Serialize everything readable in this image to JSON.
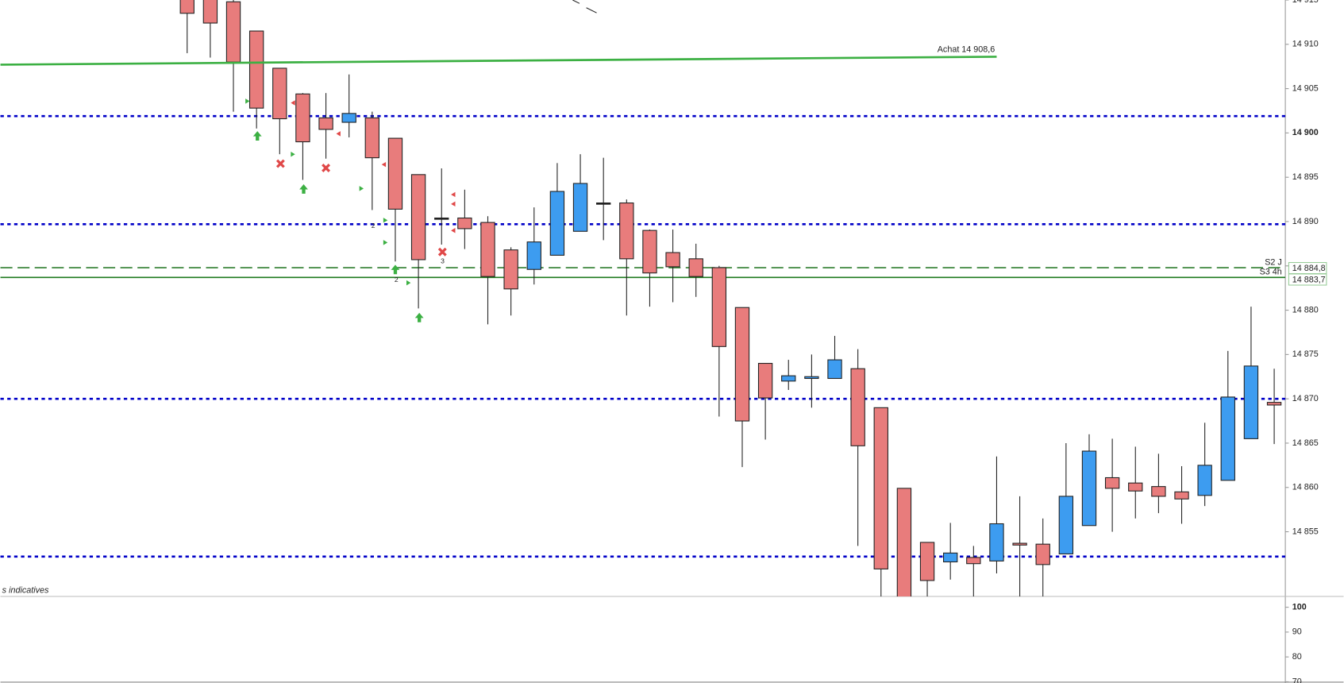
{
  "chart_data": {
    "type": "candlestick",
    "up_color": "#3d9cf0",
    "down_color": "#e87c7c",
    "ylim": [
      14847.7,
      14915.0
    ],
    "yticks": [
      {
        "value": 14915,
        "label": "14 915"
      },
      {
        "value": 14910,
        "label": "14 910"
      },
      {
        "value": 14905,
        "label": "14 905"
      },
      {
        "value": 14900,
        "label": "14 900"
      },
      {
        "value": 14895,
        "label": "14 895"
      },
      {
        "value": 14890,
        "label": "14 890"
      },
      {
        "value": 14885,
        "label": "14 885"
      },
      {
        "value": 14880,
        "label": "14 880"
      },
      {
        "value": 14875,
        "label": "14 875"
      },
      {
        "value": 14870,
        "label": "14 870"
      },
      {
        "value": 14865,
        "label": "14 865"
      },
      {
        "value": 14860,
        "label": "14 860"
      },
      {
        "value": 14855,
        "label": "14 855"
      }
    ],
    "open": [
      14915.5,
      14915.5,
      14914.8,
      14911.5,
      14907.3,
      14904.4,
      14901.7,
      14901.2,
      14901.7,
      14899.4,
      14895.3,
      14890.4,
      14890.4,
      14889.9,
      14886.8,
      14884.6,
      14886.2,
      14888.9,
      14892.1,
      14892.1,
      14889.0,
      14886.5,
      14885.8,
      14884.8,
      14880.3,
      14874.0,
      14872.0,
      14872.3,
      14872.3,
      14873.4,
      14869.0,
      14859.9,
      14853.8,
      14851.6,
      14852.1,
      14851.7,
      14853.7,
      14853.6,
      14852.5,
      14855.7,
      14861.1,
      14860.5,
      14860.1,
      14859.5,
      14859.1,
      14860.8,
      14865.5,
      14869.6
    ],
    "high": [
      14916.9,
      14916.9,
      14916.0,
      14911.5,
      14907.3,
      14904.5,
      14904.5,
      14906.6,
      14902.4,
      14899.4,
      14895.3,
      14896.0,
      14893.6,
      14890.6,
      14887.1,
      14891.6,
      14896.6,
      14897.6,
      14897.2,
      14892.5,
      14889.1,
      14889.1,
      14887.5,
      14885.0,
      14880.3,
      14874.0,
      14874.4,
      14875.0,
      14877.1,
      14875.6,
      14869.0,
      14859.9,
      14853.8,
      14856.0,
      14853.4,
      14863.5,
      14859.0,
      14856.5,
      14865.0,
      14866.0,
      14865.5,
      14864.6,
      14863.8,
      14862.4,
      14867.3,
      14875.4,
      14880.4,
      14873.4
    ],
    "low": [
      14909.0,
      14908.5,
      14902.4,
      14900.5,
      14897.6,
      14894.7,
      14897.1,
      14899.5,
      14891.3,
      14885.5,
      14880.2,
      14887.4,
      14886.9,
      14878.4,
      14879.4,
      14882.9,
      14886.2,
      14888.9,
      14887.9,
      14879.4,
      14880.4,
      14880.9,
      14881.5,
      14868.0,
      14862.3,
      14865.4,
      14871.0,
      14869.0,
      14872.3,
      14853.4,
      14847.5,
      14845.0,
      14847.5,
      14849.6,
      14847.5,
      14850.3,
      14847.5,
      14847.5,
      14852.5,
      14855.7,
      14855.0,
      14856.5,
      14857.1,
      14855.9,
      14857.9,
      14860.8,
      14865.5,
      14864.9
    ],
    "close": [
      14913.5,
      14912.4,
      14908.0,
      14902.8,
      14901.6,
      14899.0,
      14900.4,
      14902.2,
      14897.2,
      14891.4,
      14885.7,
      14890.4,
      14889.2,
      14883.8,
      14882.4,
      14887.7,
      14893.4,
      14894.3,
      14892.1,
      14885.8,
      14884.2,
      14884.9,
      14883.8,
      14875.9,
      14867.5,
      14870.1,
      14872.6,
      14872.5,
      14874.4,
      14864.7,
      14850.8,
      14846.3,
      14849.5,
      14852.6,
      14851.4,
      14855.9,
      14853.5,
      14851.3,
      14859.0,
      14864.1,
      14859.9,
      14859.6,
      14859.0,
      14858.7,
      14862.5,
      14870.2,
      14873.7,
      14869.3
    ],
    "levels": [
      {
        "value": 14901.9,
        "style": "dotted",
        "color": "#0000c8"
      },
      {
        "value": 14889.7,
        "style": "dotted",
        "color": "#0000c8"
      },
      {
        "value": 14870.0,
        "style": "dotted",
        "color": "#0000c8"
      },
      {
        "value": 14852.2,
        "style": "dotted",
        "color": "#0000c8"
      },
      {
        "value": 14884.8,
        "style": "dashed",
        "color": "#2e7d2e",
        "name": "S2 J",
        "value_label": "14 884,8"
      },
      {
        "value": 14883.7,
        "style": "solid",
        "color": "#1e7a1e",
        "name": "S3 4h",
        "value_label": "14 883,7"
      }
    ],
    "trendline": {
      "label": "Achat 14 908,6",
      "start": 14907.7,
      "end": 14908.6,
      "color": "#3cb043"
    },
    "annotations": [
      "2",
      "2",
      "3"
    ],
    "footer_text": "s indicatives",
    "lower_panel": {
      "ylim": [
        69.5,
        104
      ],
      "yticks": [
        100,
        90,
        80,
        70
      ]
    }
  }
}
